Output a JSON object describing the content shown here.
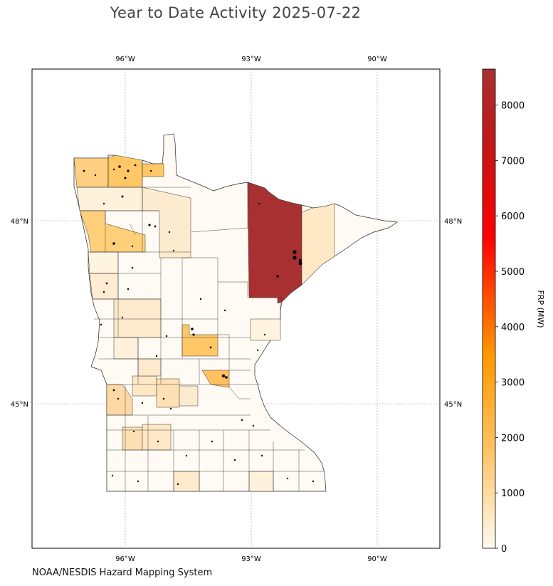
{
  "title": "Year to Date Activity 2025-07-22",
  "credit": "NOAA/NESDIS Hazard Mapping System",
  "map": {
    "lon_ticks": [
      "96°W",
      "93°W",
      "90°W"
    ],
    "lat_ticks": [
      "48°N",
      "45°N"
    ]
  },
  "colorbar": {
    "label": "FRP (MW)",
    "ticks": [
      "0",
      "1000",
      "2000",
      "3000",
      "4000",
      "5000",
      "6000",
      "7000",
      "8000"
    ],
    "max_value": 8650,
    "colors": [
      "#fffaf0",
      "#ffc466",
      "#ff9a00",
      "#ff0000",
      "#c01818",
      "#a83030"
    ]
  }
}
